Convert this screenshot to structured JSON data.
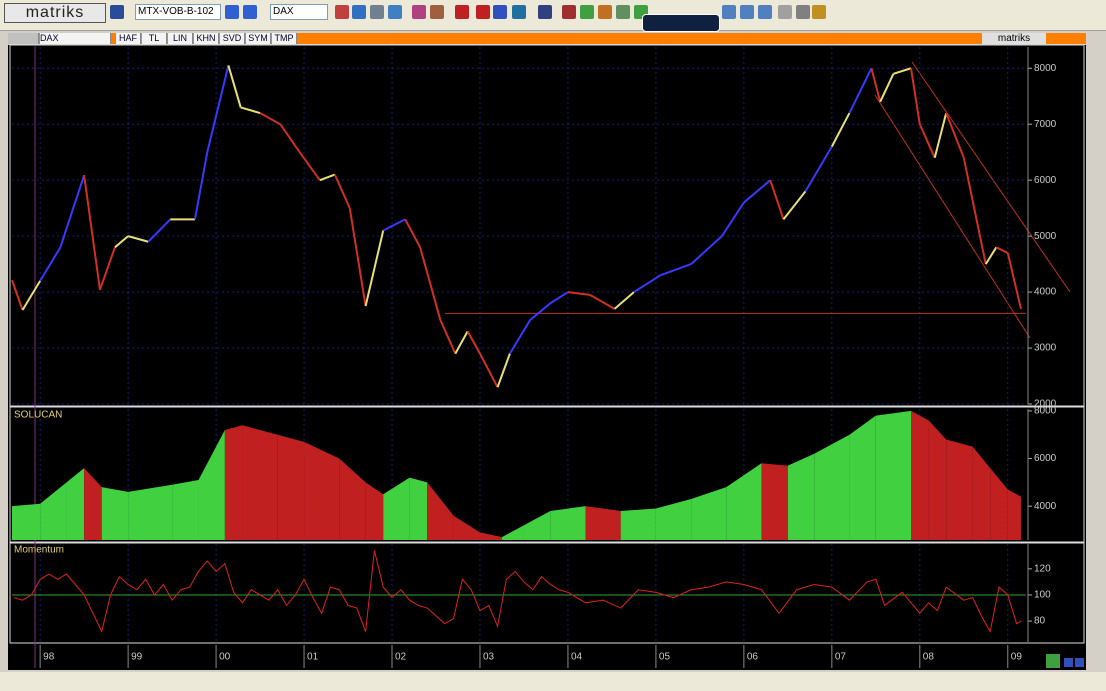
{
  "toolbar": {
    "logo": "matriks",
    "account": "MTX-VOB-B-102",
    "symbol": "DAX"
  },
  "tabs": {
    "symbol": "DAX",
    "items": [
      "HAF",
      "TL",
      "LIN",
      "KHN",
      "SVD",
      "SYM",
      "TMP"
    ],
    "brand": "matriks"
  },
  "x_axis": {
    "xlim": [
      1997.68,
      2009.23
    ],
    "xticks": [
      {
        "value": 1998,
        "label": "98"
      },
      {
        "value": 1999,
        "label": "99"
      },
      {
        "value": 2000,
        "label": "00"
      },
      {
        "value": 2001,
        "label": "01"
      },
      {
        "value": 2002,
        "label": "02"
      },
      {
        "value": 2003,
        "label": "03"
      },
      {
        "value": 2004,
        "label": "04"
      },
      {
        "value": 2005,
        "label": "05"
      },
      {
        "value": 2006,
        "label": "06"
      },
      {
        "value": 2007,
        "label": "07"
      },
      {
        "value": 2008,
        "label": "08"
      },
      {
        "value": 2009,
        "label": "09"
      }
    ]
  },
  "chart_data": [
    {
      "type": "line",
      "grid": true,
      "ylim": [
        2000,
        8380
      ],
      "yticks": [
        2000,
        3000,
        4000,
        5000,
        6000,
        7000,
        8000
      ],
      "reference_line": 3620,
      "reference_color": "#c03020",
      "x": [
        1997.68,
        1997.8,
        1998.0,
        1998.23,
        1998.5,
        1998.68,
        1998.85,
        1999.0,
        1999.23,
        1999.48,
        1999.76,
        1999.9,
        2000.14,
        2000.28,
        2000.5,
        2000.73,
        2000.95,
        2001.18,
        2001.35,
        2001.52,
        2001.7,
        2001.9,
        2002.15,
        2002.32,
        2002.55,
        2002.72,
        2002.86,
        2003.0,
        2003.2,
        2003.34,
        2003.57,
        2003.8,
        2004.0,
        2004.25,
        2004.53,
        2004.75,
        2005.05,
        2005.4,
        2005.75,
        2006.0,
        2006.3,
        2006.45,
        2006.7,
        2007.0,
        2007.2,
        2007.45,
        2007.55,
        2007.7,
        2007.9,
        2008.0,
        2008.17,
        2008.3,
        2008.5,
        2008.75,
        2008.87,
        2009.0,
        2009.15
      ],
      "values": [
        4214,
        3680,
        4200,
        4800,
        6090,
        4040,
        4800,
        5000,
        4900,
        5300,
        5300,
        6500,
        8050,
        7300,
        7200,
        7000,
        6500,
        6000,
        6100,
        5500,
        3750,
        5100,
        5300,
        4800,
        3500,
        2900,
        3300,
        2900,
        2300,
        2900,
        3500,
        3800,
        4000,
        3950,
        3700,
        4000,
        4300,
        4500,
        5000,
        5600,
        6000,
        5300,
        5800,
        6600,
        7200,
        8000,
        7400,
        7900,
        8000,
        7000,
        6400,
        7200,
        6400,
        4500,
        4800,
        4700,
        3700
      ],
      "colors": [
        "#e8e070",
        "#d03020",
        "#e8e070",
        "#3838ff",
        "#3838ff",
        "#d03020",
        "#d03020",
        "#e8e070",
        "#e8e070",
        "#3838ff",
        "#e8e070",
        "#3838ff",
        "#3838ff",
        "#e8e070",
        "#e8e070",
        "#d03020",
        "#d03020",
        "#d03020",
        "#e8e070",
        "#d03020",
        "#d03020",
        "#e8e070",
        "#3838ff",
        "#d03020",
        "#d03020",
        "#d03020",
        "#e8e070",
        "#d03020",
        "#d03020",
        "#e8e070",
        "#3838ff",
        "#3838ff",
        "#3838ff",
        "#d03020",
        "#d03020",
        "#e8e070",
        "#3838ff",
        "#3838ff",
        "#3838ff",
        "#3838ff",
        "#3838ff",
        "#d03020",
        "#e8e070",
        "#3838ff",
        "#e8e070",
        "#3838ff",
        "#d03020",
        "#e8e070",
        "#e8e070",
        "#d03020",
        "#d03020",
        "#e8e070",
        "#d03020",
        "#d03020",
        "#e8e070",
        "#d03020",
        "#d03020"
      ]
    },
    {
      "type": "area",
      "title": "SOLUCAN",
      "ylim": [
        2580,
        8080
      ],
      "yticks": [
        4000,
        6000,
        8000
      ],
      "x": [
        1997.68,
        1998.0,
        1998.3,
        1998.5,
        1998.7,
        1999.0,
        1999.5,
        1999.8,
        2000.1,
        2000.3,
        2000.7,
        2001.0,
        2001.4,
        2001.7,
        2001.9,
        2002.2,
        2002.4,
        2002.7,
        2003.0,
        2003.25,
        2003.5,
        2003.8,
        2004.2,
        2004.6,
        2005.0,
        2005.4,
        2005.8,
        2006.2,
        2006.5,
        2006.8,
        2007.2,
        2007.5,
        2007.9,
        2008.1,
        2008.3,
        2008.6,
        2008.8,
        2009.0,
        2009.15
      ],
      "values": [
        4000,
        4100,
        5000,
        5600,
        4800,
        4600,
        4900,
        5100,
        7200,
        7400,
        7000,
        6700,
        6000,
        5000,
        4500,
        5200,
        5000,
        3600,
        2900,
        2700,
        3200,
        3800,
        4000,
        3800,
        3900,
        4300,
        4800,
        5800,
        5700,
        6200,
        7000,
        7800,
        8000,
        7600,
        6800,
        6500,
        5600,
        4700,
        4400
      ],
      "colors": [
        "#c02020",
        "#40d040",
        "#40d040",
        "#40d040",
        "#c02020",
        "#40d040",
        "#40d040",
        "#40d040",
        "#40d040",
        "#c02020",
        "#c02020",
        "#c02020",
        "#c02020",
        "#c02020",
        "#c02020",
        "#40d040",
        "#40d040",
        "#c02020",
        "#c02020",
        "#c02020",
        "#40d040",
        "#40d040",
        "#40d040",
        "#c02020",
        "#40d040",
        "#40d040",
        "#40d040",
        "#40d040",
        "#c02020",
        "#40d040",
        "#40d040",
        "#40d040",
        "#40d040",
        "#c02020",
        "#c02020",
        "#c02020",
        "#c02020",
        "#c02020",
        "#c02020"
      ]
    },
    {
      "type": "line",
      "title": "Momentum",
      "color": "#e02020",
      "ylim": [
        64,
        139
      ],
      "yticks": [
        80,
        100,
        120
      ],
      "reference_line": 100,
      "reference_color": "#30a030",
      "x": [
        1997.7,
        1997.8,
        1997.9,
        1998.0,
        1998.1,
        1998.2,
        1998.3,
        1998.4,
        1998.5,
        1998.6,
        1998.7,
        1998.8,
        1998.9,
        1999.0,
        1999.1,
        1999.2,
        1999.3,
        1999.4,
        1999.5,
        1999.6,
        1999.7,
        1999.8,
        1999.9,
        2000.0,
        2000.1,
        2000.2,
        2000.3,
        2000.4,
        2000.5,
        2000.6,
        2000.7,
        2000.8,
        2000.9,
        2001.0,
        2001.1,
        2001.2,
        2001.3,
        2001.4,
        2001.5,
        2001.6,
        2001.7,
        2001.8,
        2001.9,
        2002.0,
        2002.1,
        2002.2,
        2002.3,
        2002.4,
        2002.5,
        2002.6,
        2002.7,
        2002.8,
        2002.9,
        2003.0,
        2003.1,
        2003.2,
        2003.3,
        2003.4,
        2003.5,
        2003.6,
        2003.7,
        2003.8,
        2003.9,
        2004.0,
        2004.2,
        2004.4,
        2004.6,
        2004.8,
        2005.0,
        2005.2,
        2005.4,
        2005.6,
        2005.8,
        2006.0,
        2006.2,
        2006.4,
        2006.6,
        2006.8,
        2007.0,
        2007.2,
        2007.4,
        2007.5,
        2007.6,
        2007.8,
        2008.0,
        2008.1,
        2008.2,
        2008.3,
        2008.5,
        2008.6,
        2008.7,
        2008.8,
        2008.9,
        2009.0,
        2009.1,
        2009.15
      ],
      "values": [
        98,
        96,
        100,
        112,
        116,
        112,
        116,
        108,
        100,
        86,
        72,
        100,
        114,
        108,
        104,
        112,
        100,
        108,
        96,
        104,
        106,
        118,
        126,
        118,
        124,
        102,
        94,
        104,
        100,
        96,
        104,
        92,
        100,
        112,
        98,
        86,
        106,
        104,
        92,
        90,
        72,
        134,
        106,
        98,
        104,
        96,
        92,
        90,
        84,
        78,
        82,
        112,
        104,
        88,
        92,
        76,
        112,
        118,
        110,
        104,
        114,
        108,
        104,
        102,
        94,
        96,
        90,
        104,
        102,
        98,
        104,
        106,
        110,
        108,
        104,
        86,
        104,
        108,
        106,
        96,
        110,
        112,
        92,
        102,
        86,
        94,
        88,
        106,
        96,
        98,
        84,
        72,
        106,
        100,
        78,
        80
      ]
    }
  ]
}
